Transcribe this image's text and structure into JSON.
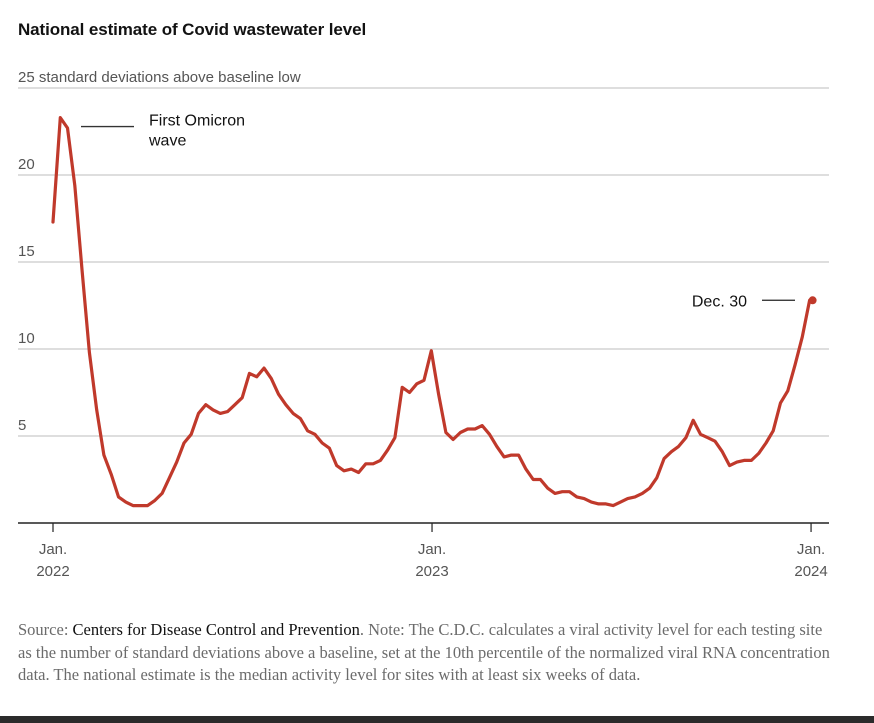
{
  "chart_data": {
    "type": "line",
    "title": "National estimate of Covid wastewater level",
    "ylabel": "standard deviations above baseline low",
    "xlabel": "",
    "ylim": [
      0,
      25
    ],
    "yticks": [
      {
        "value": 25,
        "label": "25 standard deviations above baseline low"
      },
      {
        "value": 20,
        "label": "20"
      },
      {
        "value": 15,
        "label": "15"
      },
      {
        "value": 10,
        "label": "10"
      },
      {
        "value": 5,
        "label": "5"
      }
    ],
    "xticks": [
      {
        "week": 0,
        "line1": "Jan.",
        "line2": "2022"
      },
      {
        "week": 52.1,
        "line1": "Jan.",
        "line2": "2023"
      },
      {
        "week": 104.2,
        "line1": "Jan.",
        "line2": "2024"
      }
    ],
    "grid": true,
    "series": [
      {
        "name": "National estimate",
        "color": "#c0392b",
        "x_unit": "weeks since Jan. 2022",
        "x_start": 0,
        "x_step": 1,
        "values": [
          17.3,
          23.3,
          22.7,
          19.4,
          14.5,
          9.8,
          6.5,
          3.9,
          2.8,
          1.5,
          1.2,
          1.0,
          1.0,
          1.0,
          1.3,
          1.7,
          2.6,
          3.5,
          4.6,
          5.1,
          6.3,
          6.8,
          6.5,
          6.3,
          6.4,
          6.8,
          7.2,
          8.6,
          8.4,
          8.9,
          8.3,
          7.4,
          6.8,
          6.3,
          6.0,
          5.3,
          5.1,
          4.6,
          4.3,
          3.3,
          3.0,
          3.1,
          2.9,
          3.4,
          3.4,
          3.6,
          4.2,
          4.9,
          7.8,
          7.5,
          8.0,
          8.2,
          9.9,
          7.4,
          5.2,
          4.8,
          5.2,
          5.4,
          5.4,
          5.6,
          5.1,
          4.4,
          3.8,
          3.9,
          3.9,
          3.1,
          2.5,
          2.5,
          2.0,
          1.7,
          1.8,
          1.8,
          1.5,
          1.4,
          1.2,
          1.1,
          1.1,
          1.0,
          1.2,
          1.4,
          1.5,
          1.7,
          2.0,
          2.6,
          3.7,
          4.1,
          4.4,
          4.9,
          5.9,
          5.1,
          4.9,
          4.7,
          4.1,
          3.3,
          3.5,
          3.6,
          3.6,
          4.0,
          4.6,
          5.3,
          6.9,
          7.6,
          9.1,
          10.7,
          12.8
        ]
      }
    ],
    "annotations": [
      {
        "text_line1": "First Omicron",
        "text_line2": "wave",
        "at_week": 1
      },
      {
        "text": "Dec. 30",
        "at_week": 104,
        "value": 12.8
      }
    ],
    "source_label": "Source:",
    "source_name": "Centers for Disease Control and Prevention",
    "note": ". Note: The C.D.C. calculates a viral activity level for each testing site as the number of standard deviations above a baseline, set at the 10th percentile of the normalized viral RNA concentration data. The national estimate is the median activity level for sites with at least six weeks of data."
  }
}
